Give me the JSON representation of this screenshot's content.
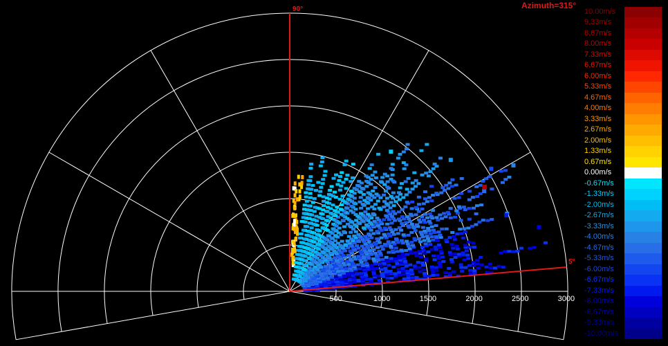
{
  "title": "Azimuth=315°",
  "elevation_markers": {
    "top": "90°",
    "low": "5°"
  },
  "range_ticks": [
    "500",
    "1000",
    "1500",
    "2000",
    "2500",
    "3000"
  ],
  "range_tick_values": [
    500,
    1000,
    1500,
    2000,
    2500,
    3000
  ],
  "legend": {
    "items": [
      {
        "label": "10.00m/s",
        "color": "#8b0000"
      },
      {
        "label": "9.33m/s",
        "color": "#a00000"
      },
      {
        "label": "8.67m/s",
        "color": "#b40000"
      },
      {
        "label": "8.00m/s",
        "color": "#c80000"
      },
      {
        "label": "7.33m/s",
        "color": "#dc0a00"
      },
      {
        "label": "6.67m/s",
        "color": "#f01400"
      },
      {
        "label": "6.00m/s",
        "color": "#ff2800"
      },
      {
        "label": "5.33m/s",
        "color": "#ff4600"
      },
      {
        "label": "4.67m/s",
        "color": "#ff6400"
      },
      {
        "label": "4.00m/s",
        "color": "#ff7d00"
      },
      {
        "label": "3.33m/s",
        "color": "#ff9600"
      },
      {
        "label": "2.67m/s",
        "color": "#ffaa00"
      },
      {
        "label": "2.00m/s",
        "color": "#ffbe00"
      },
      {
        "label": "1.33m/s",
        "color": "#ffd200"
      },
      {
        "label": "0.67m/s",
        "color": "#ffe600"
      },
      {
        "label": "0.00m/s",
        "color": "#ffffff"
      },
      {
        "label": "-0.67m/s",
        "color": "#00e6ff"
      },
      {
        "label": "-1.33m/s",
        "color": "#00d2ff"
      },
      {
        "label": "-2.00m/s",
        "color": "#00bef5"
      },
      {
        "label": "-2.67m/s",
        "color": "#14aaf0"
      },
      {
        "label": "-3.33m/s",
        "color": "#1e96eb"
      },
      {
        "label": "-4.00m/s",
        "color": "#2882e6"
      },
      {
        "label": "-4.67m/s",
        "color": "#286ee6"
      },
      {
        "label": "-5.33m/s",
        "color": "#1e5aeb"
      },
      {
        "label": "-6.00m/s",
        "color": "#1446f0"
      },
      {
        "label": "-6.67m/s",
        "color": "#0a32f5"
      },
      {
        "label": "-7.33m/s",
        "color": "#0019f0"
      },
      {
        "label": "-8.00m/s",
        "color": "#0000dc"
      },
      {
        "label": "-8.67m/s",
        "color": "#0000c0"
      },
      {
        "label": "-9.33m/s",
        "color": "#0000a0"
      },
      {
        "label": "-10.00m/s",
        "color": "#00008b"
      }
    ]
  },
  "colors": {
    "background": "#000000",
    "grid": "#ffffff",
    "marker_line": "#e01818",
    "title": "#e01818"
  }
}
